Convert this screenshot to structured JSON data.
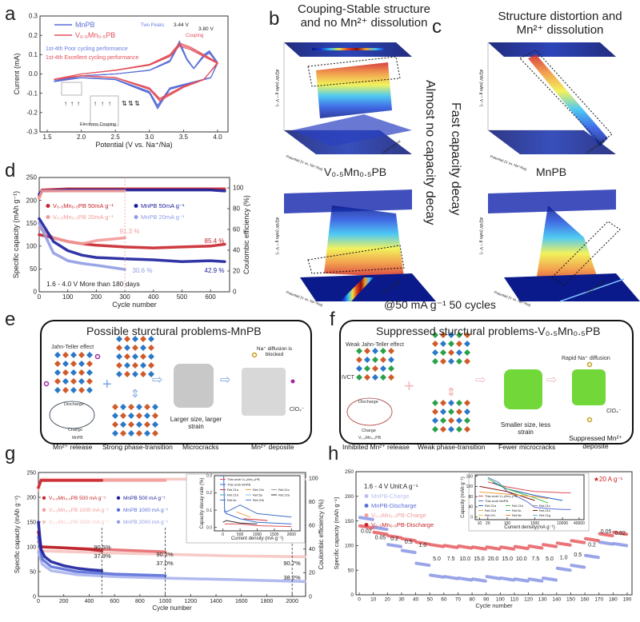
{
  "panels": {
    "a": "a",
    "b": "b",
    "c": "c",
    "d": "d",
    "e": "e",
    "f": "f",
    "g": "g",
    "h": "h"
  },
  "panel_a": {
    "legend": [
      "MnPB",
      "V₀.₅Mn₀.₅PB"
    ],
    "note_poor": "1st-4th Poor cycling performance",
    "note_excellent": "1st-4th Excellent cycling performance",
    "two_peaks": "Two Peaks",
    "peak1": "3.44 V",
    "peak2": "3.80 V",
    "couping": "Couping",
    "electrons_couping": "Electrons Couping"
  },
  "panel_bc": {
    "b_title_1": "Couping-Stable structure",
    "b_title_2": "and no Mn²⁺ dissolution",
    "c_title_1": "Structure distortion and",
    "c_title_2": "Mn²⁺ dissolution",
    "b_sub": "V₀.₅Mn₀.₅PB",
    "c_sub": "MnPB",
    "b_side": "Almost no capacity decay",
    "c_side": "Fast capacity decay",
    "condition": "@50 mA g⁻¹ 50 cycles",
    "zlabel": "dQ/dV (mAh g⁻¹ V⁻¹)",
    "xlabel": "Potential (V vs. Na⁺/Na)",
    "ylabel": "Cycle number"
  },
  "panel_e": {
    "title": "Possible sturctural problems-MnPB",
    "jahn_teller": "Jahn-Teller effect",
    "discharge": "Discharge",
    "charge": "Charge",
    "mnpb": "MnPB",
    "size": "Larger size, larger strain",
    "blocked": "Na⁺ diffusion is blocked",
    "clo4": "ClO₄⁻",
    "captions": [
      "Mn²⁺ release",
      "Strong phase-transition",
      "Microcracks",
      "Mn²⁺ deposite"
    ]
  },
  "panel_f": {
    "title": "Suppressed sturctural problems-V₀.₅Mn₀.₅PB",
    "jahn_teller": "Weak Jahn-Teller effect",
    "ivct": "IVCT",
    "discharge": "Discharge",
    "charge": "Charge",
    "vmnpb": "V₀.₅Mn₀.₅PB",
    "size": "Smaller size, less strain",
    "rapid": "Rapid Na⁺ diffusion",
    "clo4": "ClO₄⁻",
    "captions": [
      "Inhibited Mn²⁺ release",
      "Weak phase-transition",
      "Fewer microcracks",
      "Suppressed Mn²⁺ deposite"
    ]
  },
  "colors": {
    "v_dark": "#c8262c",
    "v_light": "#f29a98",
    "v_pale": "#f6c4c0",
    "mn_dark": "#1b1f9c",
    "mn_light": "#8f9ce6",
    "mn_mid": "#5a6fd8"
  },
  "chart_data": [
    {
      "type": "line",
      "xlabel": "Potential (V vs. Na⁺/Na)",
      "ylabel": "Current (mA)",
      "xlim": [
        1.394,
        4.153
      ],
      "ylim": [
        -0.3,
        0.3
      ],
      "xticks": [
        "1.5",
        "2.0",
        "2.5",
        "3.0",
        "3.5",
        "4.0"
      ],
      "yticks": [
        "-0.3",
        "-0.2",
        "-0.1",
        "0.0",
        "0.1",
        "0.2",
        "0.3"
      ],
      "series": [
        {
          "name": "MnPB",
          "color": "#5a6fd8",
          "x": [
            1.6,
            2.0,
            2.5,
            3.0,
            3.3,
            3.44,
            3.55,
            3.65,
            3.8,
            3.88,
            4.0,
            3.9,
            3.6,
            3.3,
            3.12,
            3.0,
            2.5,
            2.0,
            1.6
          ],
          "y": [
            -0.04,
            -0.01,
            0.0,
            0.02,
            0.07,
            0.17,
            0.08,
            0.03,
            0.1,
            0.12,
            0.06,
            -0.02,
            -0.05,
            -0.08,
            -0.18,
            -0.1,
            -0.03,
            -0.02,
            -0.04
          ]
        },
        {
          "name": "V₀.₅Mn₀.₅PB",
          "color": "#e2505a",
          "x": [
            1.6,
            2.0,
            2.5,
            3.0,
            3.3,
            3.44,
            3.6,
            3.8,
            4.0,
            3.8,
            3.5,
            3.15,
            3.0,
            2.5,
            2.0,
            1.6
          ],
          "y": [
            -0.03,
            0.0,
            0.02,
            0.05,
            0.1,
            0.16,
            0.14,
            0.1,
            0.06,
            -0.03,
            -0.07,
            -0.14,
            -0.08,
            -0.02,
            -0.01,
            -0.03
          ]
        }
      ]
    },
    {
      "type": "scatter",
      "xlabel": "Cycle number",
      "ylabel": "Specific capacity (mAh g⁻¹)",
      "y2label": "Coulombic efficiency (%)",
      "xlim": [
        0,
        667
      ],
      "ylim": [
        0,
        250
      ],
      "y2lim": [
        0,
        110
      ],
      "xticks": [
        "0",
        "100",
        "200",
        "300",
        "400",
        "500",
        "600"
      ],
      "yticks": [
        "0",
        "50",
        "100",
        "150",
        "200",
        "250"
      ],
      "y2ticks": [
        "0",
        "20",
        "40",
        "60",
        "80",
        "100"
      ],
      "legend": [
        "V₀.₅Mn₀.₅PB  50mA g⁻¹",
        "V₀.₅Mn₀.₅PB  20mA g⁻¹",
        "MnPB   50mA g⁻¹",
        "MnPB   20mA g⁻¹"
      ],
      "series": [
        {
          "name": "V₀.₅Mn₀.₅PB 50mA g⁻¹ CE",
          "axis": "right",
          "color": "#c8262c",
          "x": [
            0,
            10,
            100,
            300,
            500,
            650
          ],
          "y": [
            92,
            98,
            99,
            99,
            99,
            99
          ]
        },
        {
          "name": "MnPB 50mA g⁻¹ CE",
          "axis": "right",
          "color": "#1b1f9c",
          "x": [
            0,
            10,
            100,
            300,
            500,
            600,
            650
          ],
          "y": [
            94,
            97,
            98,
            98,
            98,
            98,
            97
          ]
        },
        {
          "name": "V₀.₅Mn₀.₅PB 20mA g⁻¹ CE",
          "axis": "right",
          "color": "#f29a98",
          "x": [
            0,
            10,
            100,
            200,
            300
          ],
          "y": [
            90,
            97,
            97,
            97,
            97
          ]
        },
        {
          "name": "V₀.₅Mn₀.₅PB 50mA g⁻¹",
          "color": "#c8262c",
          "x": [
            0,
            50,
            100,
            150,
            200,
            300,
            400,
            500,
            600,
            650
          ],
          "y": [
            125,
            118,
            110,
            105,
            102,
            98,
            96,
            98,
            100,
            104
          ]
        },
        {
          "name": "V₀.₅Mn₀.₅PB 20mA g⁻¹",
          "color": "#f29a98",
          "x": [
            0,
            50,
            100,
            150,
            200,
            300
          ],
          "y": [
            140,
            118,
            110,
            105,
            112,
            118
          ]
        },
        {
          "name": "MnPB 50mA g⁻¹",
          "color": "#1b1f9c",
          "x": [
            0,
            50,
            100,
            150,
            200,
            300,
            400,
            500,
            600,
            650
          ],
          "y": [
            160,
            110,
            90,
            80,
            75,
            72,
            70,
            66,
            68,
            66
          ]
        },
        {
          "name": "MnPB 20mA g⁻¹",
          "color": "#8f9ce6",
          "x": [
            0,
            50,
            100,
            150,
            200,
            300
          ],
          "y": [
            150,
            85,
            68,
            62,
            58,
            49
          ]
        }
      ],
      "annotations": [
        "91.3 %",
        "85.4 %",
        "42.9 %",
        "30.6 %",
        "1.6 - 4.0 V More than 180 days"
      ]
    },
    {
      "type": "scatter",
      "xlabel": "Cycle number",
      "ylabel": "Specific capacity (mAh g⁻¹)",
      "y2label": "Coulombic efficiency (%)",
      "xlim": [
        0,
        2106
      ],
      "ylim": [
        0,
        250
      ],
      "y2lim": [
        0,
        104.7
      ],
      "xticks": [
        "0",
        "200",
        "400",
        "600",
        "800",
        "1000",
        "1200",
        "1400",
        "1600",
        "1800",
        "2000"
      ],
      "yticks": [
        "0",
        "50",
        "100",
        "150",
        "200",
        "250"
      ],
      "y2ticks": [
        "0",
        "20",
        "40",
        "60",
        "80",
        "100"
      ],
      "legend": [
        "V₀.₅Mn₀.₅PB  500 mA g⁻¹",
        "V₀.₅Mn₀.₅PB  1000 mA g⁻¹",
        "V₀.₅Mn₀.₅PB  2000 mA g⁻¹",
        "MnPB  500 mA g⁻¹",
        "MnPB  1000 mA g⁻¹",
        "MnPB  2000 mA g⁻¹"
      ],
      "series": [
        {
          "name": "CE 2000",
          "axis": "right",
          "color": "#f6c4c0",
          "x": [
            0,
            20,
            2100
          ],
          "y": [
            90,
            99,
            99
          ]
        },
        {
          "name": "CE 1000",
          "axis": "right",
          "color": "#f29a98",
          "x": [
            0,
            20,
            1000
          ],
          "y": [
            92,
            98,
            98
          ]
        },
        {
          "name": "CE 500",
          "axis": "right",
          "color": "#c8262c",
          "x": [
            0,
            20,
            500
          ],
          "y": [
            92,
            98,
            98
          ]
        },
        {
          "name": "V₀.₅Mn₀.₅PB 2000 mA g⁻¹",
          "color": "#f6c4c0",
          "x": [
            0,
            20,
            500,
            1000,
            1500,
            2100
          ],
          "y": [
            95,
            92,
            88,
            85,
            82,
            80
          ]
        },
        {
          "name": "V₀.₅Mn₀.₅PB 1000 mA g⁻¹",
          "color": "#e46a6e",
          "x": [
            0,
            20,
            300,
            600,
            1000
          ],
          "y": [
            110,
            100,
            97,
            94,
            90
          ]
        },
        {
          "name": "V₀.₅Mn₀.₅PB 500 mA g⁻¹",
          "color": "#b81d24",
          "x": [
            0,
            20,
            200,
            400,
            500
          ],
          "y": [
            130,
            100,
            98,
            95,
            92
          ]
        },
        {
          "name": "MnPB 2000 mA g⁻¹",
          "color": "#a9b3ee",
          "x": [
            0,
            30,
            100,
            300,
            600,
            1000,
            1500,
            2100
          ],
          "y": [
            90,
            65,
            52,
            44,
            40,
            37,
            34,
            30
          ]
        },
        {
          "name": "MnPB 1000 mA g⁻¹",
          "color": "#5a6fd8",
          "x": [
            0,
            30,
            100,
            300,
            600,
            1000
          ],
          "y": [
            120,
            75,
            60,
            50,
            45,
            42
          ]
        },
        {
          "name": "MnPB 500 mA g⁻¹",
          "color": "#1b1f9c",
          "x": [
            0,
            20,
            50,
            100,
            200,
            300,
            400,
            500
          ],
          "y": [
            150,
            95,
            80,
            70,
            62,
            57,
            54,
            52
          ]
        }
      ],
      "annotations": [
        "90.5%",
        "37.9%",
        "90.2%",
        "37.0%",
        "90.7%",
        "38.2%"
      ],
      "inset": {
        "xlabel": "Current density (mA g⁻¹)",
        "ylabel": "Capacity decay rate (%)",
        "xlim": [
          -250,
          2250
        ],
        "ylim": [
          -0.02,
          0.3
        ],
        "xticks": [
          "0",
          "500",
          "1000",
          "1500",
          "2000"
        ],
        "yticks": [
          "0.0",
          "0.1",
          "0.2",
          "0.3"
        ],
        "legend": [
          "This work V₀.₅Mn₀.₅PB",
          "This work MnPB",
          "Ref.21a",
          "Ref.21b",
          "Ref.21c",
          "Ref.21d",
          "Ref.5a",
          "Ref.22a",
          "Ref.6c",
          "Ref.22b"
        ],
        "series": [
          {
            "name": "This work V₀.₅Mn₀.₅PB",
            "color": "#e0505a",
            "x": [
              50,
              500,
              1000,
              2000
            ],
            "y": [
              0.02,
              0.02,
              0.01,
              0.005
            ]
          },
          {
            "name": "This work MnPB",
            "color": "#3a6ad0",
            "x": [
              20,
              50,
              100,
              500,
              1000,
              2000
            ],
            "y": [
              0.3,
              0.09,
              0.08,
              0.05,
              0.03,
              0.02
            ]
          },
          {
            "name": "Ref.21a",
            "color": "#d03030",
            "x": [
              600,
              1000,
              1300
            ],
            "y": [
              0.05,
              0.045,
              0.04
            ]
          },
          {
            "name": "Ref.21b",
            "color": "#f0a040",
            "x": [
              400,
              800
            ],
            "y": [
              0.09,
              0.06
            ]
          },
          {
            "name": "Ref.6c",
            "color": "#4070c0",
            "x": [
              50,
              100,
              500,
              1000,
              2000
            ],
            "y": [
              0.1,
              0.09,
              0.13,
              0.08,
              0.06
            ]
          },
          {
            "name": "Ref.22a",
            "color": "#303030",
            "x": [
              0,
              100,
              500,
              1000
            ],
            "y": [
              0.03,
              0.04,
              0.025,
              0.02
            ]
          }
        ]
      }
    },
    {
      "type": "scatter",
      "xlabel": "Cycle number",
      "ylabel": "Specific capacity (mAh g⁻¹)",
      "xlim": [
        -2.3,
        193.4
      ],
      "ylim": [
        0,
        250
      ],
      "xticks": [
        "0",
        "10",
        "20",
        "30",
        "40",
        "50",
        "60",
        "70",
        "80",
        "90",
        "100",
        "110",
        "120",
        "130",
        "140",
        "150",
        "160",
        "170",
        "180",
        "190"
      ],
      "yticks": [
        "0",
        "50",
        "100",
        "150",
        "200",
        "250"
      ],
      "legend": [
        "MnPB-Charge",
        "MnPB-Discharge",
        "V₀.₅Mn₀.₅PB-Charge",
        "V₀.₅Mn₀.₅PB-Discharge"
      ],
      "unit_note": "1.6 - 4 V Unit:A g⁻¹",
      "rates": [
        "0.02",
        "0.05",
        "0.2",
        "0.5",
        "1.0",
        "5.0",
        "7.5",
        "10.0",
        "15.0",
        "20.0",
        "15.0",
        "10.0",
        "7.5",
        "5.0",
        "1.0",
        "0.5",
        "0.2",
        "0.05",
        "0.02"
      ],
      "series": [
        {
          "name": "MnPB-Discharge",
          "color": "#8f9ce6",
          "segments": [
            155,
            135,
            100,
            88,
            62,
            38,
            35,
            32,
            30,
            35,
            32,
            30,
            30,
            32,
            52,
            58,
            78,
            105,
            102
          ]
        },
        {
          "name": "V₀.₅Mn₀.₅PB-Discharge",
          "color": "#e8666a",
          "segments": [
            138,
            125,
            118,
            112,
            105,
            100,
            98,
            97,
            95,
            95,
            95,
            96,
            97,
            100,
            103,
            108,
            112,
            122,
            125
          ]
        }
      ],
      "inset": {
        "xlabel": "Current density(mA g⁻¹)",
        "ylabel": "Capacity (mAh g⁻¹)",
        "xscale": "log",
        "xlim": [
          7,
          60000
        ],
        "ylim": [
          -10,
          165
        ],
        "xticks": [
          "10",
          "20",
          "100",
          "1000",
          "10000",
          "40000"
        ],
        "yticks": [
          "0",
          "40",
          "80",
          "120",
          "160"
        ],
        "star_label": "★20 A g⁻¹",
        "legend": [
          "This work V₀.₅Mn₀.₅PB",
          "This work MnPB",
          "Ref.21a",
          "Ref.21b",
          "Ref.21c",
          "Ref.21d",
          "Ref.6c",
          "Ref.21e",
          "Ref.21f",
          "Ref.6b",
          "Ref.21g"
        ],
        "series": [
          {
            "name": "This work V₀.₅Mn₀.₅PB",
            "color": "#e0505a",
            "x": [
              20,
              50,
              100,
              500,
              1000,
              5000,
              10000,
              20000
            ],
            "y": [
              138,
              125,
              118,
              105,
              100,
              97,
              95,
              95
            ]
          },
          {
            "name": "This work MnPB",
            "color": "#5a6fd8",
            "x": [
              20,
              50,
              100,
              500,
              1000,
              5000,
              10000,
              20000
            ],
            "y": [
              155,
              135,
              100,
              62,
              38,
              32,
              30,
              30
            ]
          },
          {
            "name": "Ref.21a",
            "color": "#2060c0",
            "x": [
              30,
              100,
              1000,
              10000
            ],
            "y": [
              135,
              110,
              85,
              65
            ]
          },
          {
            "name": "Ref.21b",
            "color": "#40c040",
            "x": [
              20,
              100,
              1000,
              3000
            ],
            "y": [
              150,
              110,
              75,
              55
            ]
          },
          {
            "name": "Ref.21e",
            "color": "#801010",
            "x": [
              10,
              100,
              1000
            ],
            "y": [
              120,
              100,
              65
            ]
          },
          {
            "name": "Ref.6b",
            "color": "#f0a040",
            "x": [
              10,
              100,
              1000,
              3000
            ],
            "y": [
              98,
              90,
              80,
              72
            ]
          }
        ]
      }
    }
  ]
}
